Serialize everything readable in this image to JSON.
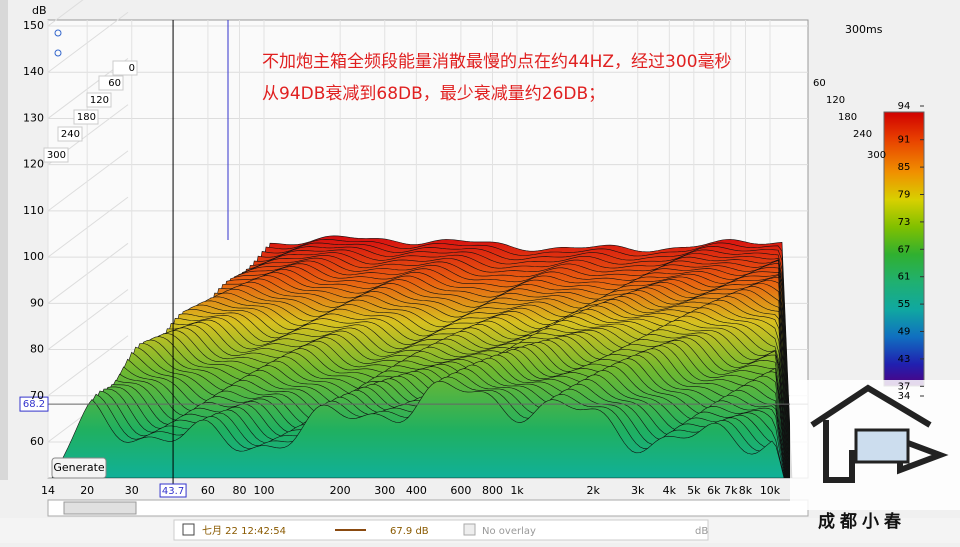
{
  "y_axis": {
    "unit": "dB",
    "ticks": [
      60,
      70,
      80,
      90,
      100,
      110,
      120,
      130,
      140,
      150
    ]
  },
  "x_axis": {
    "log": true,
    "ticks": [
      14,
      20,
      30,
      60,
      80,
      100,
      200,
      300,
      400,
      600,
      800,
      {
        "value": 1000,
        "label": "1k"
      },
      {
        "value": 2000,
        "label": "2k"
      },
      {
        "value": 3000,
        "label": "3k"
      },
      {
        "value": 4000,
        "label": "4k"
      },
      {
        "value": 5000,
        "label": "5k"
      },
      {
        "value": 6000,
        "label": "6k"
      },
      {
        "value": 7000,
        "label": "7k"
      },
      {
        "value": 8000,
        "label": "8k"
      },
      {
        "value": 10000,
        "label": "10k"
      }
    ]
  },
  "time_axis": {
    "ticks": [
      0,
      60,
      120,
      180,
      240,
      300
    ],
    "end_label": "300ms"
  },
  "color_scale": {
    "ticks": [
      94,
      91,
      85,
      79,
      73,
      67,
      61,
      55,
      49,
      43,
      37,
      34
    ]
  },
  "annotation": [
    "不加炮主箱全频段能量消散最慢的点在约44HZ，经过300毫秒",
    "从94DB衰减到68DB，最少衰减量约26DB；"
  ],
  "cursor": {
    "level": 68.2,
    "frequency": 43.7
  },
  "button": "Generate",
  "status": {
    "date": "七月 22 12:42:54",
    "value": "67.9 dB",
    "overlay": "No overlay",
    "unit": "dB"
  },
  "watermark": "成都小春"
}
